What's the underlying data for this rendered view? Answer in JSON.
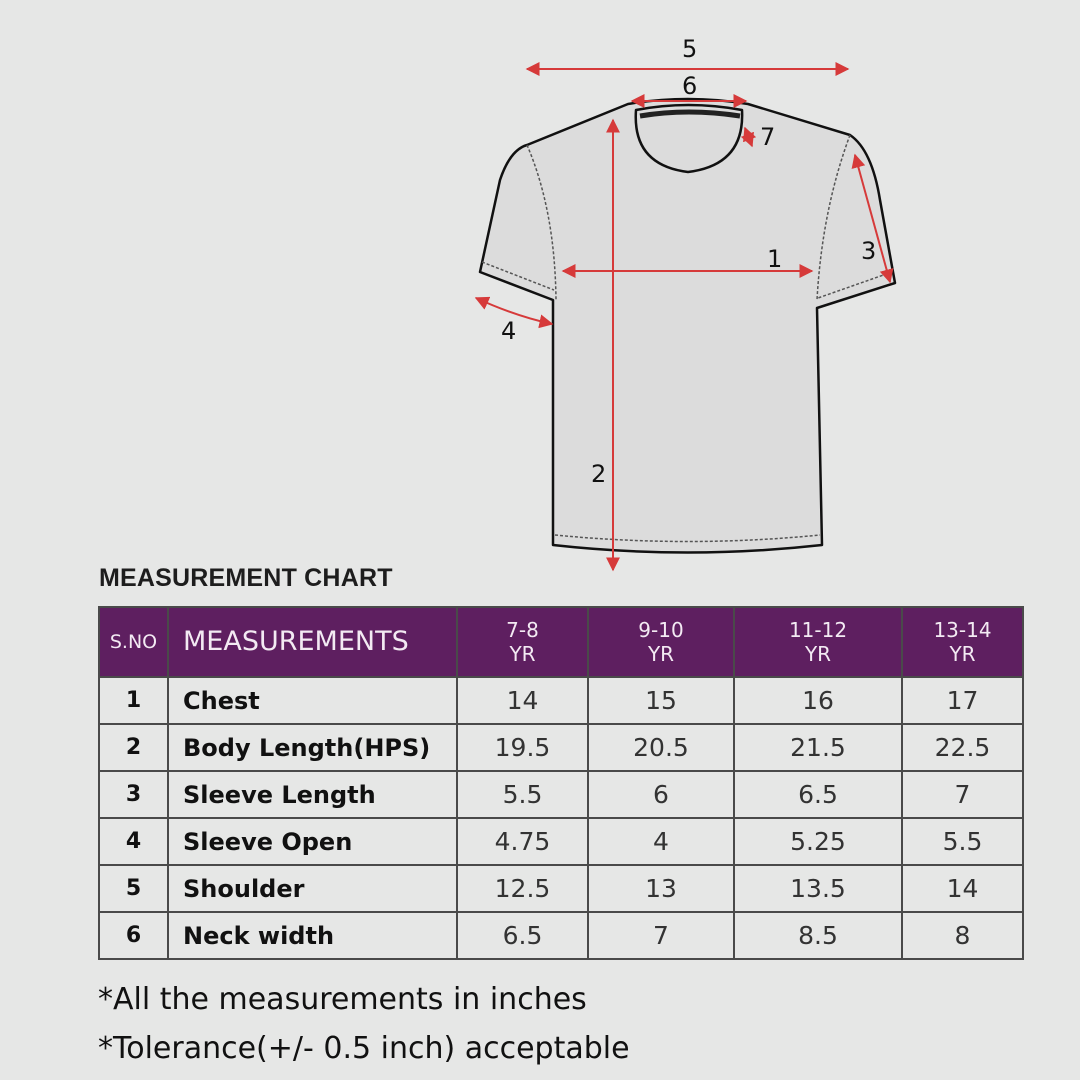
{
  "diagram": {
    "labels": [
      "1",
      "2",
      "3",
      "4",
      "5",
      "6",
      "7"
    ],
    "colors": {
      "arrow": "#d63a3a",
      "shirt_fill": "#dcdcdc",
      "outline": "#111111"
    }
  },
  "chart": {
    "title": "MEASUREMENT CHART",
    "header": {
      "sno": "S.NO",
      "measurements": "MEASUREMENTS",
      "sizes": [
        {
          "range": "7-8",
          "unit": "YR"
        },
        {
          "range": "9-10",
          "unit": "YR"
        },
        {
          "range": "11-12",
          "unit": "YR"
        },
        {
          "range": "13-14",
          "unit": "YR"
        }
      ]
    },
    "rows": [
      {
        "sno": "1",
        "name": "Chest",
        "values": [
          "14",
          "15",
          "16",
          "17"
        ]
      },
      {
        "sno": "2",
        "name": "Body Length(HPS)",
        "values": [
          "19.5",
          "20.5",
          "21.5",
          "22.5"
        ]
      },
      {
        "sno": "3",
        "name": "Sleeve Length",
        "values": [
          "5.5",
          "6",
          "6.5",
          "7"
        ]
      },
      {
        "sno": "4",
        "name": "Sleeve Open",
        "values": [
          "4.75",
          "4",
          "5.25",
          "5.5"
        ]
      },
      {
        "sno": "5",
        "name": "Shoulder",
        "values": [
          "12.5",
          "13",
          "13.5",
          "14"
        ]
      },
      {
        "sno": "6",
        "name": "Neck width",
        "values": [
          "6.5",
          "7",
          "8.5",
          "8"
        ]
      }
    ],
    "header_color": "#5e1f60"
  },
  "notes": [
    "*All the measurements in inches",
    "*Tolerance(+/- 0.5 inch) acceptable"
  ]
}
